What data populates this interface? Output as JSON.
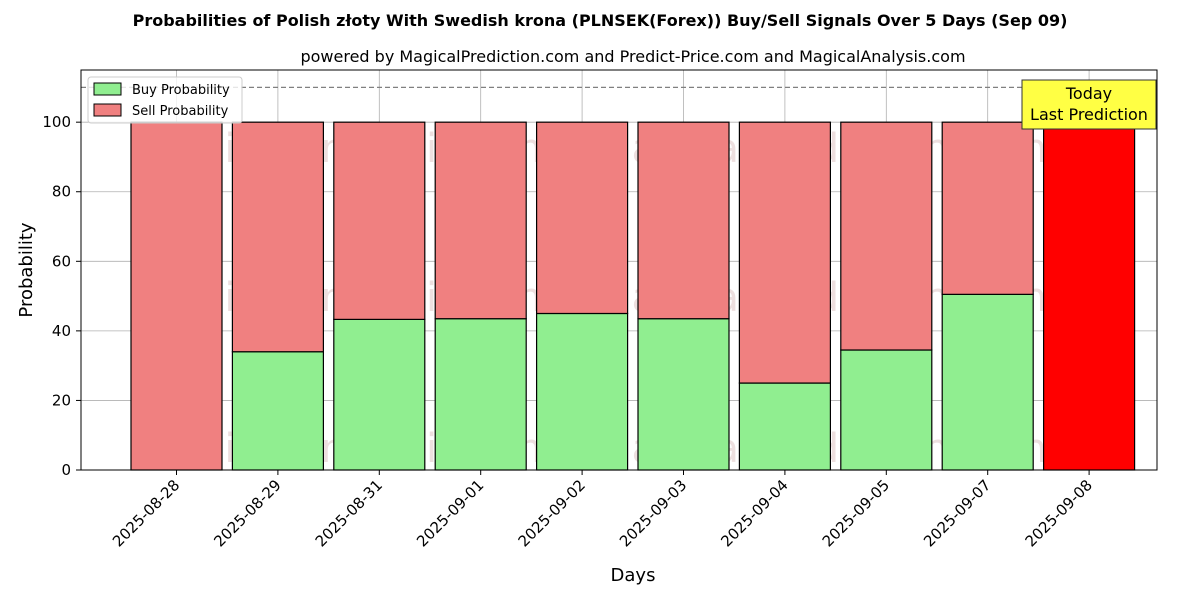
{
  "chart_data": {
    "type": "bar",
    "stacked": true,
    "title": "Probabilities of Polish złoty With Swedish krona (PLNSEK(Forex)) Buy/Sell Signals Over 5 Days (Sep 09)",
    "subtitle": "powered by MagicalPrediction.com and Predict-Price.com and MagicalAnalysis.com",
    "xlabel": "Days",
    "ylabel": "Probability",
    "ylim": [
      0,
      115
    ],
    "yticks": [
      0,
      20,
      40,
      60,
      80,
      100
    ],
    "grid": true,
    "legend_position": "top-left",
    "categories": [
      "2025-08-28",
      "2025-08-29",
      "2025-08-31",
      "2025-09-01",
      "2025-09-02",
      "2025-09-03",
      "2025-09-04",
      "2025-09-05",
      "2025-09-07",
      "2025-09-08"
    ],
    "series": [
      {
        "name": "Buy Probability",
        "color": "#90ee90",
        "values": [
          0,
          34,
          43.3,
          43.5,
          45,
          43.5,
          25,
          34.5,
          50.5,
          0
        ]
      },
      {
        "name": "Sell Probability",
        "color": "#f08080",
        "values": [
          100,
          66,
          56.7,
          56.5,
          55,
          56.5,
          75,
          65.5,
          49.5,
          100
        ]
      }
    ],
    "highlight": {
      "category": "2025-09-08",
      "color": "#ff0000"
    },
    "reference_line": {
      "y": 110,
      "style": "dashed",
      "color": "#808080"
    },
    "annotation": {
      "lines": [
        "Today",
        "Last Prediction"
      ],
      "background": "#ffff44"
    },
    "watermarks": [
      "MagicalAnalysis.com",
      "MagicalPrediction.com"
    ]
  }
}
